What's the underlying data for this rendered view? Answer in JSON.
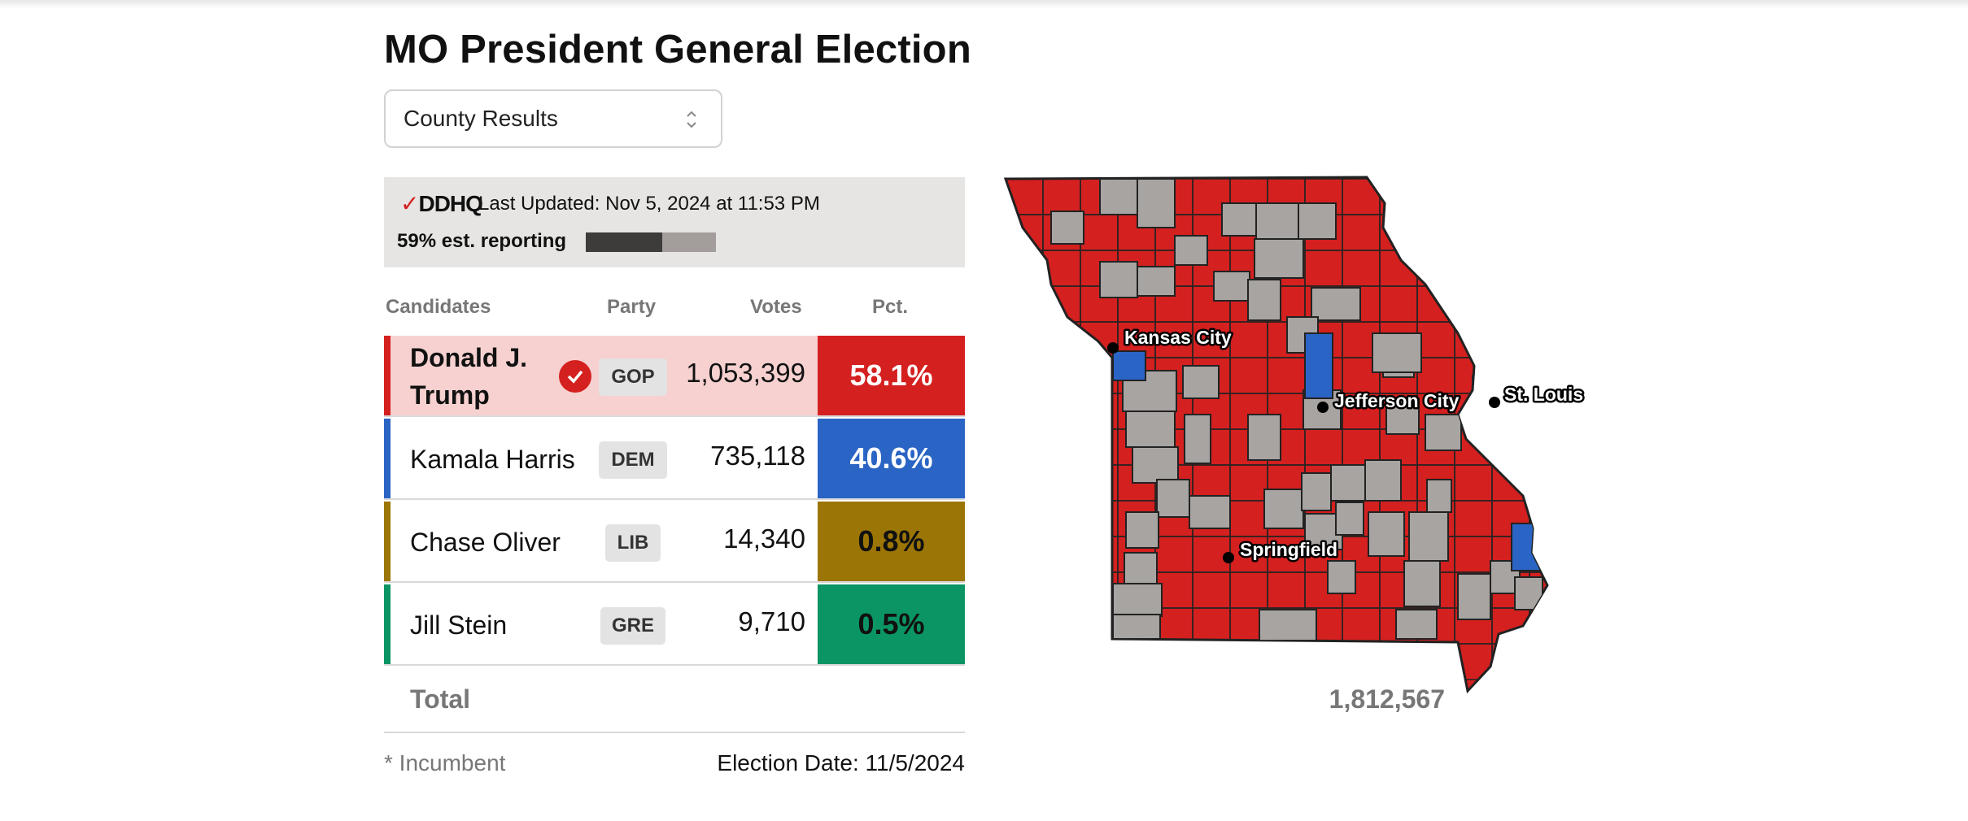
{
  "page": {
    "title": "MO President General Election"
  },
  "view_select": {
    "value": "County Results"
  },
  "status": {
    "logo": "DDHQ",
    "last_updated": "Last Updated: Nov 5, 2024 at 11:53 PM",
    "reporting_label": "59% est. reporting",
    "reporting_fraction": 0.59
  },
  "table": {
    "headers": {
      "candidates": "Candidates",
      "party": "Party",
      "votes": "Votes",
      "pct": "Pct."
    },
    "rows": [
      {
        "name": "Donald J. Trump",
        "party": "GOP",
        "votes": "1,053,399",
        "pct": "58.1%",
        "winner": true,
        "color": "#d4201f",
        "row_bg": "#f6d1d0",
        "pct_text": "#ffffff"
      },
      {
        "name": "Kamala Harris",
        "party": "DEM",
        "votes": "735,118",
        "pct": "40.6%",
        "winner": false,
        "color": "#2a64c4",
        "row_bg": "#ffffff",
        "pct_text": "#ffffff"
      },
      {
        "name": "Chase Oliver",
        "party": "LIB",
        "votes": "14,340",
        "pct": "0.8%",
        "winner": false,
        "color": "#9b7505",
        "row_bg": "#ffffff",
        "pct_text": "#111111"
      },
      {
        "name": "Jill Stein",
        "party": "GRE",
        "votes": "9,710",
        "pct": "0.5%",
        "winner": false,
        "color": "#0b9564",
        "row_bg": "#ffffff",
        "pct_text": "#111111"
      }
    ],
    "total_label": "Total",
    "total_votes": "1,812,567"
  },
  "footer": {
    "incumbent_note": "* Incumbent",
    "election_date": "Election Date: 11/5/2024"
  },
  "map": {
    "colors": {
      "gop": "#d4201f",
      "dem": "#2a64c4",
      "no_result": "#a8a4a1",
      "border": "#222222"
    },
    "cities": [
      {
        "name": "Kansas City"
      },
      {
        "name": "Jefferson City"
      },
      {
        "name": "St. Louis"
      },
      {
        "name": "Springfield"
      }
    ]
  }
}
